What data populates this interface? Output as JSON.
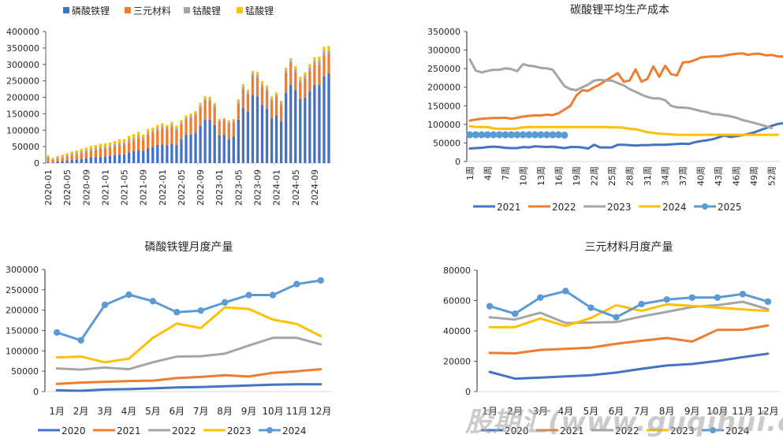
{
  "watermark": "股期汇(www.guqihui.cn)",
  "colors": {
    "blue": "#4472C4",
    "orange": "#ED7D31",
    "gray": "#A5A5A5",
    "yellow": "#FFC000",
    "lightblue": "#5B9BD5"
  },
  "chart_data": [
    {
      "id": "cathode-stack",
      "type": "bar",
      "stacked": true,
      "title": "",
      "xlabel": "",
      "ylabel": "",
      "ylim": [
        0,
        400000
      ],
      "yticks": [
        0,
        50000,
        100000,
        150000,
        200000,
        250000,
        300000,
        350000,
        400000
      ],
      "xtick_labels": [
        "2020-01",
        "2020-05",
        "2020-09",
        "2021-01",
        "2021-05",
        "2021-09",
        "2022-01",
        "2022-05",
        "2022-09",
        "2023-01",
        "2023-05",
        "2023-09",
        "2024-01",
        "2024-05",
        "2024-09"
      ],
      "legend": "top",
      "categories": [
        "2020-01",
        "2020-02",
        "2020-03",
        "2020-04",
        "2020-05",
        "2020-06",
        "2020-07",
        "2020-08",
        "2020-09",
        "2020-10",
        "2020-11",
        "2020-12",
        "2021-01",
        "2021-02",
        "2021-03",
        "2021-04",
        "2021-05",
        "2021-06",
        "2021-07",
        "2021-08",
        "2021-09",
        "2021-10",
        "2021-11",
        "2021-12",
        "2022-01",
        "2022-02",
        "2022-03",
        "2022-04",
        "2022-05",
        "2022-06",
        "2022-07",
        "2022-08",
        "2022-09",
        "2022-10",
        "2022-11",
        "2022-12",
        "2023-01",
        "2023-02",
        "2023-03",
        "2023-04",
        "2023-05",
        "2023-06",
        "2023-07",
        "2023-08",
        "2023-09",
        "2023-10",
        "2023-11",
        "2023-12",
        "2024-01",
        "2024-02",
        "2024-03",
        "2024-04",
        "2024-05",
        "2024-06",
        "2024-07",
        "2024-08",
        "2024-09",
        "2024-10",
        "2024-11",
        "2024-12"
      ],
      "series": [
        {
          "name": "磷酸铁锂",
          "color": "#4472C4",
          "values": [
            3000,
            2000,
            5000,
            6000,
            8000,
            10000,
            11000,
            13000,
            15000,
            17000,
            18000,
            18000,
            19000,
            22000,
            24000,
            26000,
            27000,
            33000,
            36000,
            40000,
            37000,
            46000,
            50000,
            55000,
            57000,
            54000,
            59000,
            55000,
            72000,
            86000,
            87000,
            93000,
            113000,
            132000,
            132000,
            116000,
            84000,
            86000,
            72000,
            81000,
            132000,
            167000,
            156000,
            207000,
            203000,
            177000,
            166000,
            136000,
            145000,
            126000,
            213000,
            238000,
            222000,
            195000,
            199000,
            219000,
            237000,
            237000,
            264000,
            273000
          ]
        },
        {
          "name": "三元材料",
          "color": "#ED7D31",
          "values": [
            13000,
            8000,
            9000,
            10000,
            11000,
            13000,
            15000,
            17000,
            18000,
            20000,
            22000,
            25000,
            25000,
            25000,
            27000,
            28000,
            28000,
            31000,
            33000,
            36000,
            33000,
            41000,
            41000,
            44000,
            49000,
            48000,
            52000,
            46000,
            46000,
            46000,
            50000,
            52000,
            55000,
            57000,
            58000,
            55000,
            42000,
            43000,
            48000,
            43000,
            48000,
            57000,
            53000,
            58000,
            56000,
            55000,
            54000,
            53000,
            56000,
            51000,
            62000,
            66000,
            55000,
            49000,
            58000,
            61000,
            62000,
            62000,
            64000,
            59000
          ]
        },
        {
          "name": "钴酸锂",
          "color": "#A5A5A5",
          "values": [
            3000,
            3000,
            4000,
            5000,
            5000,
            6000,
            6000,
            6000,
            7000,
            7000,
            7000,
            7000,
            7000,
            7000,
            7000,
            8000,
            8000,
            8000,
            8000,
            8000,
            8000,
            8000,
            8000,
            8000,
            7000,
            7000,
            7000,
            6000,
            6000,
            6000,
            6000,
            6000,
            7000,
            7000,
            6000,
            6000,
            4000,
            4000,
            5000,
            5000,
            6000,
            7000,
            6000,
            7000,
            8000,
            7000,
            7000,
            6000,
            6000,
            6000,
            7000,
            7000,
            8000,
            8000,
            9000,
            10000,
            11000,
            12000,
            12000,
            11000
          ]
        },
        {
          "name": "锰酸锂",
          "color": "#FFC000",
          "values": [
            5000,
            3000,
            4000,
            5000,
            6000,
            6000,
            7000,
            7000,
            7000,
            8000,
            8000,
            9000,
            9000,
            9000,
            9000,
            10000,
            10000,
            11000,
            11000,
            11000,
            9000,
            9000,
            9000,
            9000,
            8000,
            7000,
            7000,
            7000,
            7000,
            7000,
            8000,
            7000,
            8000,
            8000,
            6000,
            6000,
            4000,
            4000,
            5000,
            5000,
            8000,
            9000,
            8000,
            8000,
            10000,
            10000,
            9000,
            8000,
            8000,
            7000,
            8000,
            8000,
            10000,
            10000,
            10000,
            11000,
            12000,
            13000,
            14000,
            13000
          ]
        }
      ]
    },
    {
      "id": "li2co3-cost",
      "type": "line",
      "title": "碳酸锂平均生产成本",
      "xlabel": "",
      "ylabel": "",
      "ylim": [
        0,
        350000
      ],
      "yticks": [
        0,
        50000,
        100000,
        150000,
        200000,
        250000,
        300000,
        350000
      ],
      "xtick_labels": [
        "1周",
        "4周",
        "7周",
        "10周",
        "13周",
        "16周",
        "19周",
        "22周",
        "25周",
        "28周",
        "31周",
        "34周",
        "37周",
        "40周",
        "43周",
        "46周",
        "49周",
        "52周"
      ],
      "x_count": 53,
      "legend": "bottom",
      "series": [
        {
          "name": "2021",
          "color": "#4472C4",
          "markers": false,
          "values": [
            35000,
            36000,
            37000,
            39000,
            40000,
            39000,
            37000,
            36000,
            36000,
            39000,
            38000,
            41000,
            40000,
            39000,
            40000,
            38000,
            36000,
            39000,
            39000,
            38000,
            35000,
            45000,
            38000,
            38000,
            38000,
            45000,
            45000,
            44000,
            43000,
            44000,
            44000,
            45000,
            45000,
            45000,
            46000,
            47000,
            48000,
            47000,
            52000,
            55000,
            57000,
            60000,
            65000,
            70000,
            66000,
            68000,
            71000,
            74000,
            78000,
            84000,
            90000,
            96000,
            101000,
            103000,
            104000,
            105000,
            107000
          ]
        },
        {
          "name": "2022",
          "color": "#ED7D31",
          "markers": false,
          "values": [
            110000,
            113000,
            115000,
            116000,
            117000,
            117000,
            118000,
            115000,
            118000,
            121000,
            123000,
            124000,
            124000,
            126000,
            125000,
            130000,
            140000,
            150000,
            178000,
            192000,
            190000,
            200000,
            208000,
            218000,
            228000,
            238000,
            215000,
            218000,
            248000,
            215000,
            222000,
            256000,
            228000,
            258000,
            235000,
            232000,
            267000,
            268000,
            273000,
            280000,
            282000,
            283000,
            283000,
            285000,
            288000,
            290000,
            291000,
            287000,
            290000,
            290000,
            286000,
            287000,
            283000,
            283000
          ]
        },
        {
          "name": "2023",
          "color": "#A5A5A5",
          "markers": false,
          "values": [
            275000,
            245000,
            240000,
            244000,
            247000,
            247000,
            251000,
            249000,
            243000,
            262000,
            258000,
            256000,
            252000,
            251000,
            247000,
            225000,
            203000,
            195000,
            192000,
            200000,
            207000,
            218000,
            220000,
            218000,
            218000,
            211000,
            205000,
            195000,
            188000,
            180000,
            174000,
            170000,
            170000,
            165000,
            150000,
            146000,
            145000,
            144000,
            140000,
            136000,
            133000,
            128000,
            127000,
            124000,
            122000,
            118000,
            112000,
            108000,
            104000,
            100000,
            95000,
            90000
          ]
        },
        {
          "name": "2024",
          "color": "#FFC000",
          "markers": false,
          "values": [
            95000,
            93000,
            93000,
            93000,
            89000,
            88000,
            88000,
            88000,
            89000,
            92000,
            93000,
            93000,
            93000,
            93000,
            93000,
            93000,
            93000,
            93000,
            93000,
            93000,
            93000,
            93000,
            93000,
            93000,
            92000,
            92000,
            91000,
            88000,
            87000,
            83000,
            79000,
            77000,
            75000,
            74000,
            73000,
            72000,
            72000,
            72000,
            72000,
            72000,
            72000,
            72000,
            72000,
            72000,
            72000,
            72000,
            72000,
            72000,
            72000,
            72000,
            72000,
            72000,
            72000
          ]
        },
        {
          "name": "2025",
          "color": "#5B9BD5",
          "markers": true,
          "values": [
            72000,
            72000,
            72000,
            72000,
            72000,
            72000,
            72000,
            72000,
            72000,
            72000,
            72000,
            72000,
            72000,
            72000,
            72000,
            72000,
            71000
          ]
        }
      ]
    },
    {
      "id": "lfp-monthly",
      "type": "line",
      "title": "磷酸铁锂月度产量",
      "xlabel": "",
      "ylabel": "",
      "ylim": [
        0,
        300000
      ],
      "yticks": [
        0,
        50000,
        100000,
        150000,
        200000,
        250000,
        300000
      ],
      "categories": [
        "1月",
        "2月",
        "3月",
        "4月",
        "5月",
        "6月",
        "7月",
        "8月",
        "9月",
        "10月",
        "11月",
        "12月"
      ],
      "legend": "bottom",
      "series": [
        {
          "name": "2020",
          "color": "#4472C4",
          "markers": false,
          "values": [
            3000,
            2000,
            5000,
            6000,
            8000,
            10000,
            11000,
            13000,
            15000,
            17000,
            18000,
            18000
          ]
        },
        {
          "name": "2021",
          "color": "#ED7D31",
          "markers": false,
          "values": [
            19000,
            22000,
            24000,
            26000,
            27000,
            33000,
            36000,
            40000,
            37000,
            46000,
            50000,
            55000
          ]
        },
        {
          "name": "2022",
          "color": "#A5A5A5",
          "markers": false,
          "values": [
            57000,
            54000,
            59000,
            55000,
            72000,
            86000,
            87000,
            93000,
            113000,
            132000,
            132000,
            116000
          ]
        },
        {
          "name": "2023",
          "color": "#FFC000",
          "markers": false,
          "values": [
            84000,
            86000,
            72000,
            81000,
            132000,
            167000,
            156000,
            207000,
            203000,
            177000,
            166000,
            136000
          ]
        },
        {
          "name": "2024",
          "color": "#5B9BD5",
          "markers": true,
          "values": [
            145000,
            126000,
            213000,
            238000,
            222000,
            195000,
            199000,
            219000,
            237000,
            237000,
            264000,
            273000
          ]
        }
      ]
    },
    {
      "id": "ncm-monthly",
      "type": "line",
      "title": "三元材料月度产量",
      "xlabel": "",
      "ylabel": "",
      "ylim": [
        0,
        80000
      ],
      "yticks": [
        0,
        20000,
        40000,
        60000,
        80000
      ],
      "categories": [
        "1月",
        "2月",
        "3月",
        "4月",
        "5月",
        "6月",
        "7月",
        "8月",
        "9月",
        "10月",
        "11月",
        "12月"
      ],
      "legend": "bottom",
      "series": [
        {
          "name": "2020",
          "color": "#4472C4",
          "markers": false,
          "values": [
            13000,
            8500,
            9200,
            10000,
            10800,
            12500,
            15000,
            17200,
            18200,
            20200,
            22700,
            25000
          ]
        },
        {
          "name": "2021",
          "color": "#ED7D31",
          "markers": false,
          "values": [
            25500,
            25200,
            27500,
            28200,
            29000,
            31500,
            33500,
            35300,
            33000,
            40700,
            40800,
            43600
          ]
        },
        {
          "name": "2022",
          "color": "#A5A5A5",
          "markers": false,
          "values": [
            49000,
            47500,
            52000,
            45200,
            45500,
            45800,
            49500,
            52500,
            55800,
            57000,
            59200,
            54300
          ]
        },
        {
          "name": "2023",
          "color": "#FFC000",
          "markers": false,
          "values": [
            42500,
            42500,
            48200,
            43200,
            48500,
            57000,
            53200,
            57500,
            56500,
            55400,
            54200,
            53200
          ]
        },
        {
          "name": "2024",
          "color": "#5B9BD5",
          "markers": true,
          "values": [
            56300,
            51300,
            62000,
            66300,
            55300,
            49000,
            57700,
            60700,
            62000,
            62000,
            64300,
            59300
          ]
        }
      ]
    }
  ]
}
